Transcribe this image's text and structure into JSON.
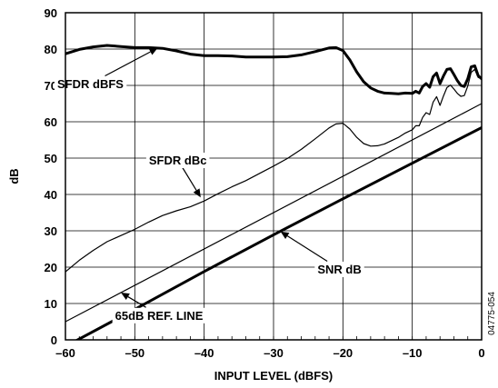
{
  "chart_data": {
    "type": "line",
    "title": "",
    "xlabel": "INPUT LEVEL (dBFS)",
    "ylabel": "dB",
    "xlim": [
      -60,
      0
    ],
    "ylim": [
      0,
      90
    ],
    "x_ticks": [
      -60,
      -50,
      -40,
      -30,
      -20,
      -10,
      0
    ],
    "x_tick_labels": [
      "–60",
      "–50",
      "–40",
      "–30",
      "–20",
      "–10",
      "0"
    ],
    "y_ticks": [
      0,
      10,
      20,
      30,
      40,
      50,
      60,
      70,
      80,
      90
    ],
    "y_tick_labels": [
      "0",
      "10",
      "20",
      "30",
      "40",
      "50",
      "60",
      "70",
      "80",
      "90"
    ],
    "grid": true,
    "figure_id": "04775-054",
    "series": [
      {
        "name": "SFDR dBFS",
        "color": "#000000",
        "weight": "heavy",
        "x": [
          -60,
          -58,
          -56,
          -54,
          -52,
          -50,
          -48,
          -46,
          -44,
          -42,
          -40,
          -38,
          -36,
          -34,
          -32,
          -30,
          -28,
          -26,
          -24,
          -22,
          -21,
          -20,
          -19,
          -18,
          -17,
          -16,
          -15,
          -14,
          -13,
          -12,
          -11,
          -10,
          -9.5,
          -9,
          -8.5,
          -8,
          -7.5,
          -7,
          -6.5,
          -6,
          -5.5,
          -5,
          -4.5,
          -4,
          -3.5,
          -3,
          -2.5,
          -2,
          -1.5,
          -1,
          -0.5,
          0
        ],
        "y": [
          78.7,
          79.9,
          80.6,
          81.0,
          80.7,
          80.4,
          80.4,
          80.2,
          79.5,
          78.6,
          78.2,
          78.2,
          78.1,
          77.8,
          77.8,
          77.8,
          77.9,
          78.4,
          79.3,
          80.3,
          80.4,
          79.6,
          77.0,
          73.7,
          71.0,
          69.3,
          68.4,
          67.9,
          67.8,
          67.7,
          67.9,
          67.8,
          68.4,
          67.9,
          69.7,
          70.5,
          69.5,
          72.4,
          73.4,
          70.5,
          72.6,
          74.4,
          74.6,
          73.0,
          71.3,
          70.0,
          69.7,
          71.8,
          75.1,
          75.4,
          72.7,
          71.8
        ]
      },
      {
        "name": "SFDR dBc",
        "color": "#000000",
        "weight": "thin",
        "x": [
          -60,
          -58,
          -56,
          -54,
          -52,
          -50,
          -48,
          -46,
          -44,
          -42,
          -40,
          -38,
          -36,
          -34,
          -32,
          -30,
          -28,
          -26,
          -24,
          -22,
          -21,
          -20,
          -19,
          -18,
          -17,
          -16,
          -15,
          -14,
          -13,
          -12,
          -11,
          -10,
          -9.5,
          -9,
          -8.5,
          -8,
          -7.5,
          -7,
          -6.5,
          -6,
          -5.5,
          -5,
          -4.5,
          -4,
          -3.5,
          -3,
          -2.5,
          -2,
          -1.5,
          -1,
          -0.5,
          0
        ],
        "y": [
          18.7,
          21.9,
          24.6,
          27.0,
          28.7,
          30.4,
          32.4,
          34.2,
          35.5,
          36.6,
          38.2,
          40.2,
          42.1,
          43.8,
          45.8,
          47.8,
          49.9,
          52.4,
          55.3,
          58.3,
          59.4,
          59.6,
          58.0,
          55.7,
          54.0,
          53.3,
          53.4,
          53.9,
          54.8,
          55.7,
          56.9,
          57.8,
          58.9,
          58.9,
          61.2,
          62.5,
          62.0,
          65.4,
          66.9,
          64.5,
          67.1,
          69.4,
          70.1,
          69.0,
          67.8,
          67.0,
          67.2,
          69.8,
          73.6,
          74.4,
          72.2,
          71.8
        ]
      },
      {
        "name": "65dB REF. LINE",
        "color": "#000000",
        "weight": "thin",
        "x": [
          -60,
          0
        ],
        "y": [
          5,
          65
        ]
      },
      {
        "name": "SNR dB",
        "color": "#000000",
        "weight": "heavy",
        "x": [
          -60,
          -50,
          -40,
          -30,
          -20,
          -10,
          0
        ],
        "y": [
          -1.8,
          8.4,
          18.8,
          28.9,
          38.8,
          48.6,
          58.4
        ]
      }
    ],
    "annotations": [
      {
        "id": "sfdr-dbfs",
        "text": "SFDR dBFS",
        "tx": -56.4,
        "ty": 70.5,
        "ax": -46.7,
        "ay": 80.3
      },
      {
        "id": "sfdr-dbc",
        "text": "SFDR dBc",
        "tx": -43.8,
        "ty": 49.5,
        "ax": -40.5,
        "ay": 39.2
      },
      {
        "id": "snr-db",
        "text": "SNR dB",
        "tx": -20.5,
        "ty": 19.5,
        "ax": -29.0,
        "ay": 29.8
      },
      {
        "id": "ref-line",
        "text": "65dB REF. LINE",
        "tx": -46.5,
        "ty": 6.8,
        "ax": -52.0,
        "ay": 13.0
      }
    ]
  }
}
